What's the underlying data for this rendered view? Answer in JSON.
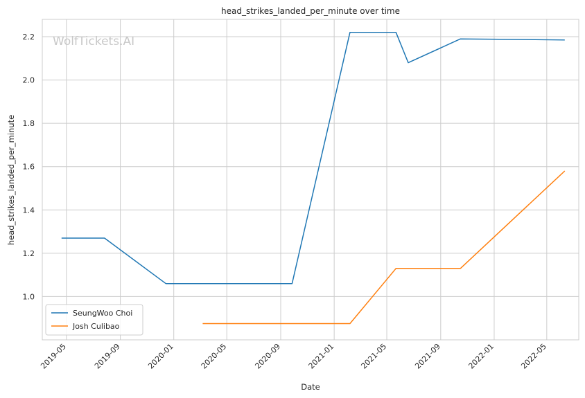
{
  "chart_data": {
    "type": "line",
    "title": "head_strikes_landed_per_minute over time",
    "xlabel": "Date",
    "ylabel": "head_strikes_landed_per_minute",
    "watermark": "WolfTickets.AI",
    "x_ticks": [
      "2019-05",
      "2019-09",
      "2020-01",
      "2020-05",
      "2020-09",
      "2021-01",
      "2021-05",
      "2021-09",
      "2022-01",
      "2022-05"
    ],
    "y_ticks": [
      "1.0",
      "1.2",
      "1.4",
      "1.6",
      "1.8",
      "2.0",
      "2.2"
    ],
    "xlim": [
      "2019-03-07",
      "2022-07-13"
    ],
    "ylim": [
      0.8,
      2.28
    ],
    "grid": true,
    "legend_position": "lower-left",
    "series": [
      {
        "name": "SeungWoo Choi",
        "color": "#1f77b4",
        "points": [
          {
            "x": "2019-04-20",
            "y": 1.27
          },
          {
            "x": "2019-07-27",
            "y": 1.27
          },
          {
            "x": "2019-12-14",
            "y": 1.06
          },
          {
            "x": "2020-09-27",
            "y": 1.06
          },
          {
            "x": "2021-02-06",
            "y": 2.22
          },
          {
            "x": "2021-05-22",
            "y": 2.22
          },
          {
            "x": "2021-06-19",
            "y": 2.08
          },
          {
            "x": "2021-10-16",
            "y": 2.19
          },
          {
            "x": "2022-06-11",
            "y": 2.185
          }
        ]
      },
      {
        "name": "Josh Culibao",
        "color": "#ff7f0e",
        "points": [
          {
            "x": "2020-03-07",
            "y": 0.875
          },
          {
            "x": "2021-02-06",
            "y": 0.875
          },
          {
            "x": "2021-05-22",
            "y": 1.13
          },
          {
            "x": "2021-10-16",
            "y": 1.13
          },
          {
            "x": "2022-06-11",
            "y": 1.58
          }
        ]
      }
    ]
  }
}
